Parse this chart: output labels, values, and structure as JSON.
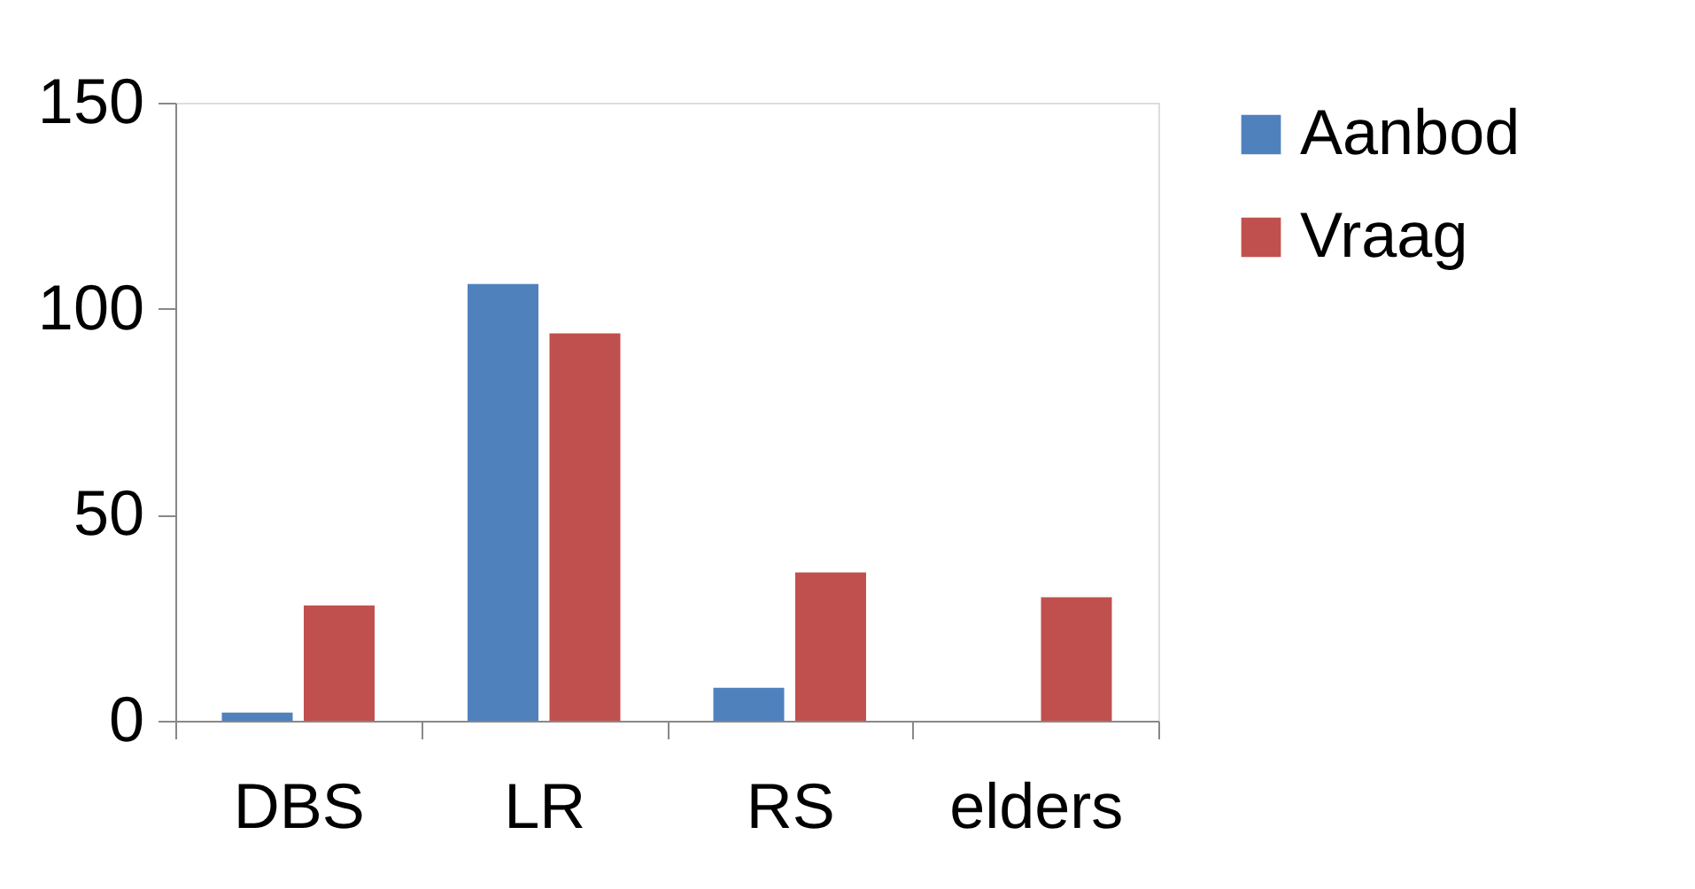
{
  "chart_data": {
    "type": "bar",
    "categories": [
      "DBS",
      "LR",
      "RS",
      "elders"
    ],
    "series": [
      {
        "name": "Aanbod",
        "color": "#4f81bd",
        "values": [
          2,
          106,
          8,
          0
        ]
      },
      {
        "name": "Vraag",
        "color": "#c0504d",
        "values": [
          28,
          94,
          36,
          30
        ]
      }
    ],
    "ylim": [
      0,
      150
    ],
    "yticks": [
      0,
      50,
      100,
      150
    ],
    "grid": false,
    "legend": "right"
  }
}
